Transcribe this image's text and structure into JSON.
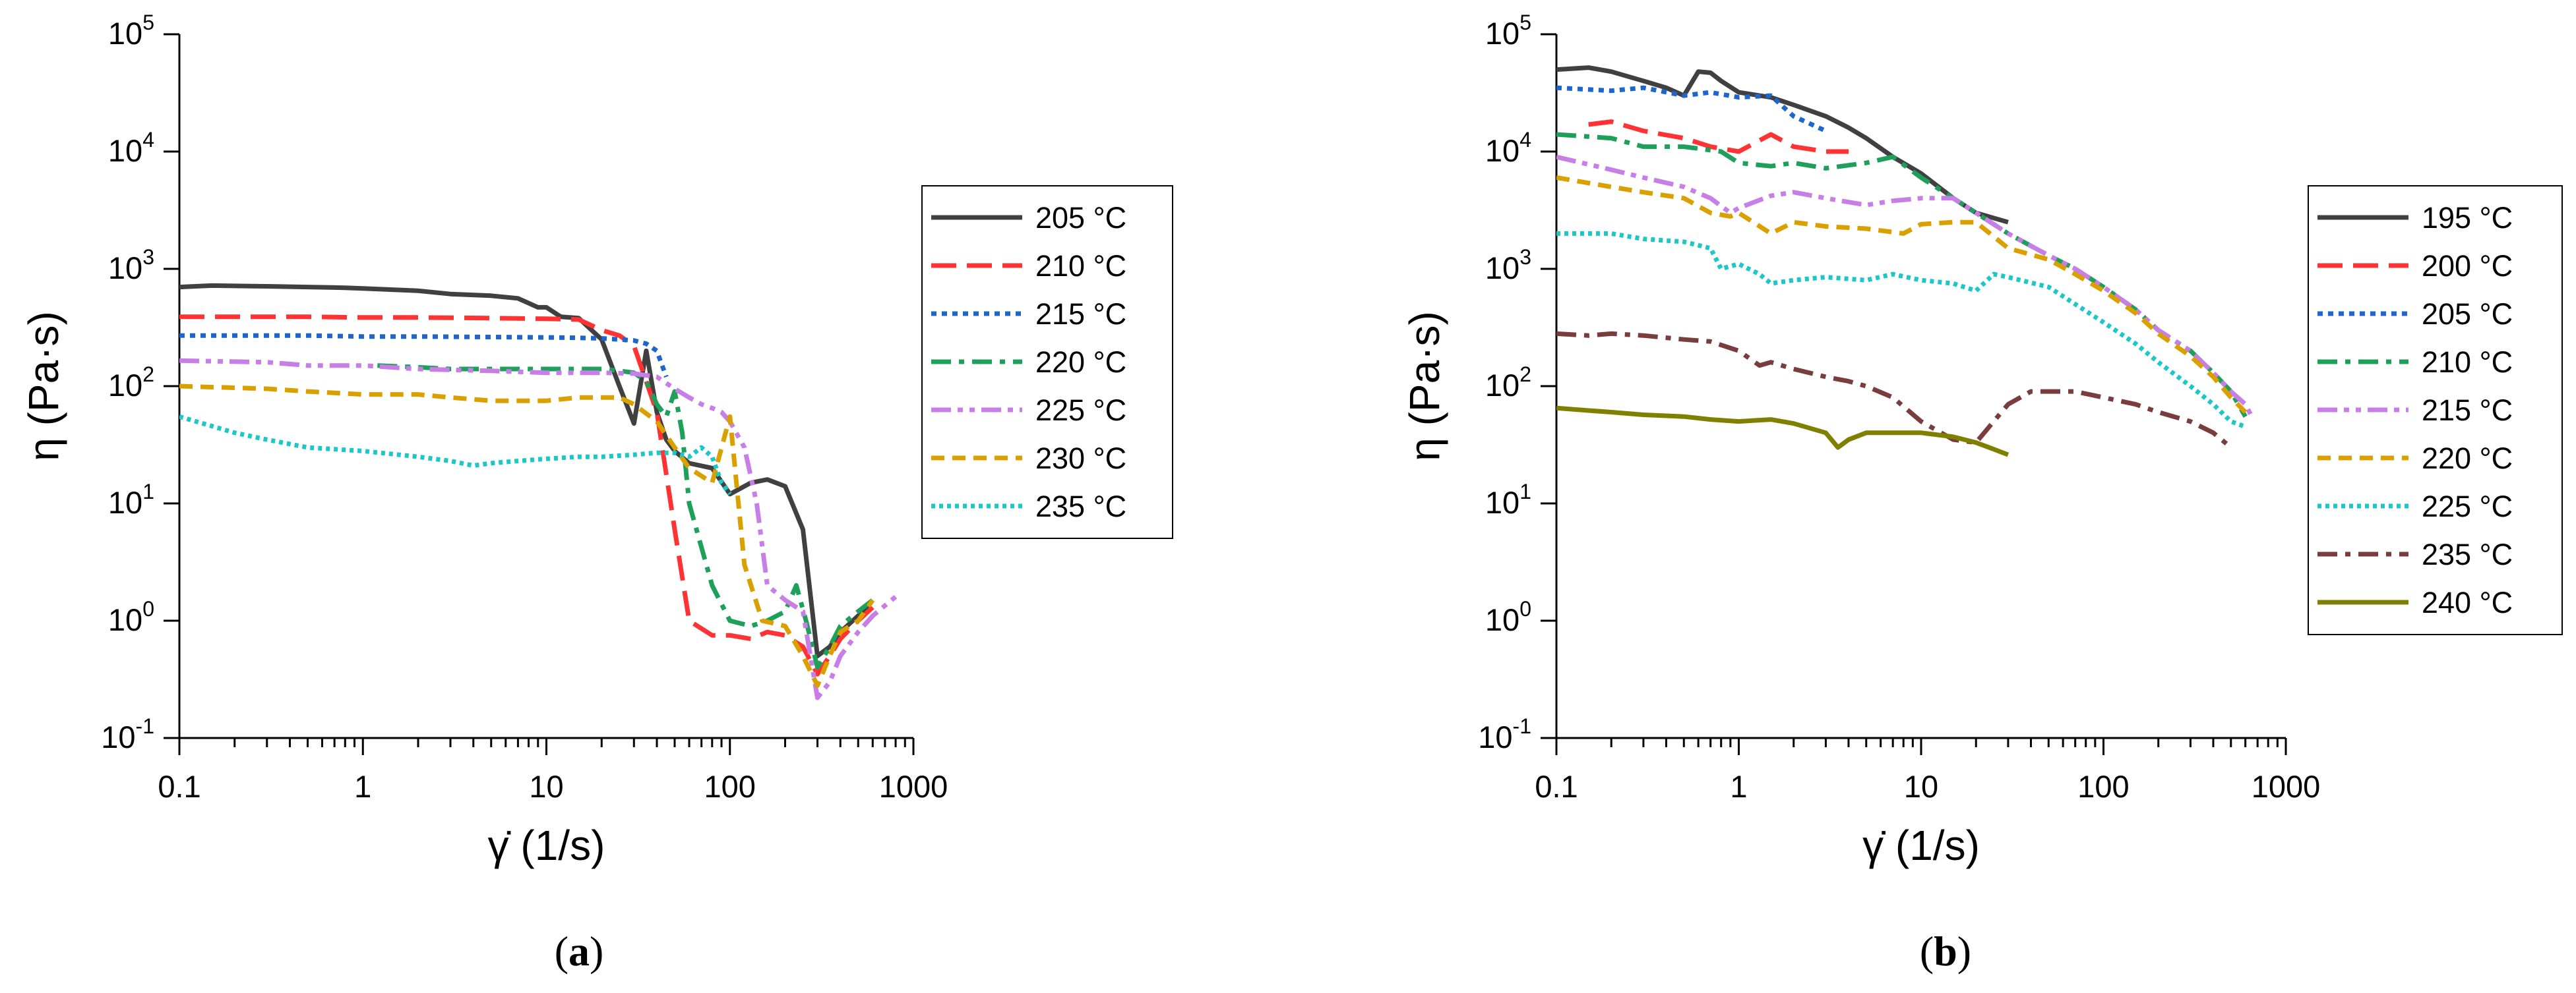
{
  "chart_data": [
    {
      "type": "line",
      "id": "a",
      "caption": "a",
      "xlabel": "γ̇ (1/s)",
      "ylabel": "η (Pa·s)",
      "xscale": "log",
      "yscale": "log",
      "xlim": [
        0.1,
        1000
      ],
      "ylim": [
        0.1,
        100000
      ],
      "xticks": [
        0.1,
        1,
        10,
        100,
        1000
      ],
      "xtick_labels": [
        "0.1",
        "1",
        "10",
        "100",
        "1000"
      ],
      "ytick_labels": [
        {
          "base": "10",
          "exp": "-1"
        },
        {
          "base": "10",
          "exp": "0"
        },
        {
          "base": "10",
          "exp": "1"
        },
        {
          "base": "10",
          "exp": "2"
        },
        {
          "base": "10",
          "exp": "3"
        },
        {
          "base": "10",
          "exp": "4"
        },
        {
          "base": "10",
          "exp": "5"
        }
      ],
      "legend_position": "right",
      "series": [
        {
          "name": "205 °C",
          "color": "#404040",
          "dash": "solid",
          "x": [
            0.1,
            0.15,
            0.2,
            0.3,
            0.5,
            0.8,
            1,
            2,
            3,
            5,
            7,
            9,
            10,
            12,
            15,
            20,
            25,
            30,
            35,
            40,
            45,
            50,
            60,
            80,
            100,
            130,
            160,
            200,
            250,
            300,
            350,
            400,
            500,
            600
          ],
          "y": [
            700,
            720,
            715,
            710,
            700,
            690,
            680,
            650,
            610,
            590,
            560,
            470,
            470,
            390,
            380,
            250,
            100,
            48,
            200,
            60,
            35,
            28,
            22,
            20,
            12,
            15,
            16,
            14,
            6,
            0.5,
            0.6,
            0.8,
            1.1,
            1.5
          ]
        },
        {
          "name": "210 °C",
          "color": "#ff3333",
          "dash": "long",
          "x": [
            0.1,
            0.3,
            0.5,
            1,
            2,
            5,
            10,
            15,
            20,
            25,
            30,
            40,
            50,
            60,
            80,
            100,
            130,
            160,
            200,
            250,
            300,
            350,
            400,
            500,
            600
          ],
          "y": [
            390,
            390,
            390,
            385,
            385,
            380,
            375,
            370,
            300,
            270,
            220,
            60,
            6,
            1,
            0.75,
            0.75,
            0.7,
            0.8,
            0.75,
            0.6,
            0.35,
            0.5,
            0.7,
            1.0,
            1.3
          ]
        },
        {
          "name": "215 °C",
          "color": "#1f66cc",
          "dash": "dot",
          "x": [
            0.1,
            0.3,
            0.5,
            1,
            2,
            5,
            10,
            15,
            20,
            25,
            30,
            35,
            40,
            45
          ],
          "y": [
            270,
            270,
            270,
            265,
            265,
            262,
            260,
            258,
            255,
            250,
            245,
            230,
            200,
            120
          ]
        },
        {
          "name": "220 °C",
          "color": "#1fa05a",
          "dash": "dashdot",
          "x": [
            1.2,
            2,
            3,
            5,
            10,
            15,
            20,
            25,
            30,
            35,
            40,
            45,
            50,
            55,
            60,
            80,
            100,
            130,
            160,
            200,
            230,
            260,
            300,
            350,
            400,
            500,
            600
          ],
          "y": [
            150,
            145,
            140,
            140,
            140,
            140,
            140,
            135,
            130,
            110,
            70,
            55,
            90,
            40,
            10,
            2,
            1.0,
            0.9,
            1.0,
            1.2,
            2.0,
            1.0,
            0.4,
            0.6,
            0.9,
            1.2,
            1.5
          ]
        },
        {
          "name": "225 °C",
          "color": "#c77ee6",
          "dash": "dashdotdot",
          "x": [
            0.1,
            0.3,
            0.5,
            1,
            2,
            5,
            10,
            15,
            20,
            30,
            40,
            50,
            60,
            70,
            80,
            90,
            100,
            120,
            140,
            160,
            200,
            250,
            300,
            350,
            400,
            500,
            600,
            800
          ],
          "y": [
            165,
            160,
            150,
            150,
            140,
            135,
            130,
            130,
            130,
            128,
            120,
            95,
            80,
            70,
            65,
            60,
            50,
            30,
            10,
            2,
            1.5,
            1.2,
            0.22,
            0.3,
            0.5,
            0.8,
            1.1,
            1.6
          ]
        },
        {
          "name": "230 °C",
          "color": "#d9a000",
          "dash": "dash",
          "x": [
            0.1,
            0.3,
            0.5,
            1,
            2,
            3,
            5,
            10,
            15,
            20,
            25,
            30,
            40,
            50,
            60,
            80,
            100,
            120,
            150,
            200,
            250,
            300,
            350,
            400,
            500,
            600
          ],
          "y": [
            100,
            95,
            90,
            85,
            85,
            80,
            75,
            75,
            80,
            80,
            80,
            70,
            50,
            30,
            20,
            15,
            55,
            3,
            1.0,
            0.9,
            0.5,
            0.28,
            0.5,
            0.8,
            1.0,
            1.5
          ]
        },
        {
          "name": "235 °C",
          "color": "#1ec7c7",
          "dash": "dotdot",
          "x": [
            0.1,
            0.2,
            0.3,
            0.5,
            1,
            2,
            3,
            4,
            5,
            7,
            10,
            15,
            20,
            30,
            40,
            50,
            60,
            70,
            80,
            90,
            100
          ],
          "y": [
            55,
            40,
            35,
            30,
            28,
            25,
            23,
            21,
            22,
            23,
            24,
            25,
            25,
            26,
            27,
            27,
            25,
            30,
            25,
            15,
            12
          ]
        }
      ]
    },
    {
      "type": "line",
      "id": "b",
      "caption": "b",
      "xlabel": "γ̇ (1/s)",
      "ylabel": "η (Pa·s)",
      "xscale": "log",
      "yscale": "log",
      "xlim": [
        0.1,
        1000
      ],
      "ylim": [
        0.1,
        100000
      ],
      "xticks": [
        0.1,
        1,
        10,
        100,
        1000
      ],
      "xtick_labels": [
        "0.1",
        "1",
        "10",
        "100",
        "1000"
      ],
      "ytick_labels": [
        {
          "base": "10",
          "exp": "-1"
        },
        {
          "base": "10",
          "exp": "0"
        },
        {
          "base": "10",
          "exp": "1"
        },
        {
          "base": "10",
          "exp": "2"
        },
        {
          "base": "10",
          "exp": "3"
        },
        {
          "base": "10",
          "exp": "4"
        },
        {
          "base": "10",
          "exp": "5"
        }
      ],
      "legend_position": "right",
      "series": [
        {
          "name": "195 °C",
          "color": "#404040",
          "dash": "solid",
          "x": [
            0.1,
            0.15,
            0.2,
            0.3,
            0.4,
            0.5,
            0.6,
            0.7,
            0.8,
            1,
            1.5,
            2,
            3,
            4,
            5,
            7,
            10,
            15,
            20,
            30
          ],
          "y": [
            50000,
            52000,
            48000,
            40000,
            35000,
            30000,
            48000,
            47000,
            40000,
            32000,
            29000,
            25000,
            20000,
            16000,
            13000,
            9000,
            6500,
            4000,
            3000,
            2500
          ]
        },
        {
          "name": "200 °C",
          "color": "#ff3333",
          "dash": "long",
          "x": [
            0.15,
            0.2,
            0.3,
            0.5,
            0.7,
            1,
            1.5,
            2,
            3,
            4
          ],
          "y": [
            17000,
            18000,
            15000,
            13000,
            11000,
            10000,
            14000,
            11000,
            10000,
            10000
          ]
        },
        {
          "name": "205 °C",
          "color": "#1f66cc",
          "dash": "dot",
          "x": [
            0.1,
            0.2,
            0.3,
            0.5,
            0.7,
            1,
            1.5,
            2,
            3
          ],
          "y": [
            35000,
            33000,
            35000,
            30000,
            32000,
            29000,
            30000,
            20000,
            15000
          ]
        },
        {
          "name": "210 °C",
          "color": "#1fa05a",
          "dash": "dashdot",
          "x": [
            0.1,
            0.2,
            0.3,
            0.5,
            0.8,
            1,
            1.5,
            2,
            3,
            5,
            7,
            10,
            15,
            20,
            30,
            50,
            70,
            100,
            150,
            200,
            300,
            400,
            500,
            600
          ],
          "y": [
            14000,
            13000,
            11000,
            11000,
            10000,
            8000,
            7500,
            8000,
            7200,
            8000,
            9000,
            6000,
            4000,
            3000,
            2000,
            1300,
            1000,
            700,
            450,
            300,
            200,
            130,
            90,
            55
          ]
        },
        {
          "name": "215 °C",
          "color": "#c77ee6",
          "dash": "dashdotdot",
          "x": [
            0.1,
            0.2,
            0.3,
            0.5,
            0.7,
            0.9,
            1,
            1.5,
            2,
            3,
            5,
            7,
            10,
            15,
            20,
            30,
            50,
            70,
            100,
            150,
            200,
            300,
            400,
            500,
            600,
            650
          ],
          "y": [
            9000,
            7000,
            6000,
            5000,
            4000,
            3000,
            3300,
            4200,
            4500,
            4000,
            3500,
            3800,
            4000,
            4000,
            3000,
            2000,
            1300,
            1000,
            700,
            450,
            300,
            200,
            130,
            90,
            70,
            55
          ]
        },
        {
          "name": "220 °C",
          "color": "#d9a000",
          "dash": "dash",
          "x": [
            0.1,
            0.2,
            0.3,
            0.5,
            0.7,
            0.9,
            1,
            1.5,
            2,
            3,
            5,
            8,
            10,
            15,
            20,
            30,
            50,
            70,
            100,
            150,
            200,
            300,
            400,
            500,
            600
          ],
          "y": [
            6000,
            5000,
            4500,
            4000,
            3000,
            2800,
            3000,
            2000,
            2500,
            2300,
            2200,
            2000,
            2400,
            2500,
            2500,
            1500,
            1200,
            900,
            650,
            420,
            280,
            180,
            120,
            80,
            60
          ]
        },
        {
          "name": "225 °C",
          "color": "#1ec7c7",
          "dash": "dotdot",
          "x": [
            0.1,
            0.2,
            0.3,
            0.5,
            0.7,
            0.8,
            1,
            1.3,
            1.5,
            2,
            3,
            5,
            7,
            10,
            15,
            20,
            25,
            30,
            50,
            70,
            100,
            150,
            200,
            300,
            400,
            500,
            600
          ],
          "y": [
            2000,
            2000,
            1800,
            1700,
            1500,
            1000,
            1100,
            900,
            750,
            800,
            850,
            800,
            900,
            800,
            750,
            650,
            900,
            850,
            700,
            500,
            350,
            230,
            160,
            100,
            70,
            50,
            45
          ]
        },
        {
          "name": "235 °C",
          "color": "#7a3d3d",
          "dash": "dashdot",
          "x": [
            0.1,
            0.15,
            0.2,
            0.3,
            0.5,
            0.7,
            1,
            1.3,
            1.5,
            2,
            3,
            4,
            5,
            7,
            10,
            15,
            20,
            25,
            30,
            40,
            50,
            70,
            100,
            150,
            200,
            300,
            400,
            500
          ],
          "y": [
            280,
            270,
            280,
            270,
            250,
            240,
            200,
            150,
            160,
            140,
            120,
            110,
            100,
            80,
            50,
            35,
            33,
            50,
            70,
            90,
            90,
            90,
            80,
            70,
            60,
            50,
            40,
            30
          ]
        },
        {
          "name": "240 °C",
          "color": "#808000",
          "dash": "solid",
          "x": [
            0.1,
            0.15,
            0.2,
            0.3,
            0.5,
            0.7,
            1,
            1.5,
            2,
            3,
            3.5,
            4,
            5,
            7,
            10,
            15,
            20,
            25,
            30
          ],
          "y": [
            65,
            62,
            60,
            57,
            55,
            52,
            50,
            52,
            48,
            40,
            30,
            35,
            40,
            40,
            40,
            37,
            33,
            29,
            26
          ]
        }
      ]
    }
  ]
}
